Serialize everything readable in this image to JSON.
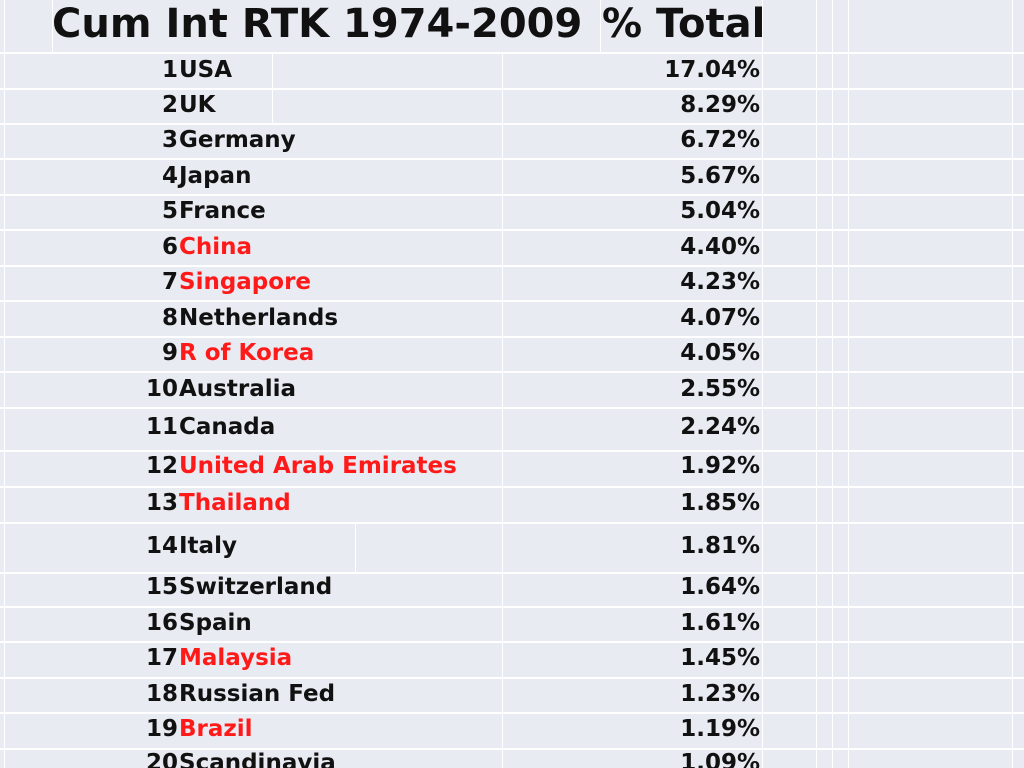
{
  "header": {
    "title": "Cum Int RTK 1974-2009",
    "total_label": "% Total"
  },
  "colors": {
    "highlight": "#ff1a1a",
    "text": "#111111",
    "background": "#e8ebf2",
    "grid": "#ffffff"
  },
  "rows": [
    {
      "rank": "1",
      "country": "USA",
      "pct": "17.04%",
      "highlight": false
    },
    {
      "rank": "2",
      "country": "UK",
      "pct": "8.29%",
      "highlight": false
    },
    {
      "rank": "3",
      "country": "Germany",
      "pct": "6.72%",
      "highlight": false
    },
    {
      "rank": "4",
      "country": "Japan",
      "pct": "5.67%",
      "highlight": false
    },
    {
      "rank": "5",
      "country": "France",
      "pct": "5.04%",
      "highlight": false
    },
    {
      "rank": "6",
      "country": "China",
      "pct": "4.40%",
      "highlight": true
    },
    {
      "rank": "7",
      "country": "Singapore",
      "pct": "4.23%",
      "highlight": true
    },
    {
      "rank": "8",
      "country": "Netherlands",
      "pct": "4.07%",
      "highlight": false
    },
    {
      "rank": "9",
      "country": "R of Korea",
      "pct": "4.05%",
      "highlight": true
    },
    {
      "rank": "10",
      "country": "Australia",
      "pct": "2.55%",
      "highlight": false
    },
    {
      "rank": "11",
      "country": "Canada",
      "pct": "2.24%",
      "highlight": false
    },
    {
      "rank": "12",
      "country": "United Arab Emirates",
      "pct": "1.92%",
      "highlight": true
    },
    {
      "rank": "13",
      "country": "Thailand",
      "pct": "1.85%",
      "highlight": true
    },
    {
      "rank": "14",
      "country": "Italy",
      "pct": "1.81%",
      "highlight": false
    },
    {
      "rank": "15",
      "country": "Switzerland",
      "pct": "1.64%",
      "highlight": false
    },
    {
      "rank": "16",
      "country": "Spain",
      "pct": "1.61%",
      "highlight": false
    },
    {
      "rank": "17",
      "country": "Malaysia",
      "pct": "1.45%",
      "highlight": true
    },
    {
      "rank": "18",
      "country": "Russian Fed",
      "pct": "1.23%",
      "highlight": false
    },
    {
      "rank": "19",
      "country": "Brazil",
      "pct": "1.19%",
      "highlight": true
    },
    {
      "rank": "20",
      "country": "Scandinavia",
      "pct": "1.09%",
      "highlight": false
    }
  ]
}
